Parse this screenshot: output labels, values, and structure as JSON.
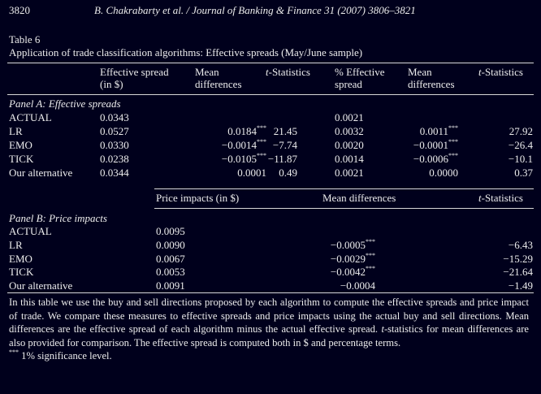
{
  "running_header": {
    "page_number": "3820",
    "citation": "B. Chakrabarty et al. / Journal of Banking & Finance 31 (2007) 3806–3821"
  },
  "table": {
    "label": "Table 6",
    "caption": "Application of trade classification algorithms: Effective spreads (May/June sample)",
    "header": {
      "col1_l1": "Effective spread",
      "col1_l2": "(in $)",
      "col2_l1": "Mean",
      "col2_l2": "differences",
      "col3": "-Statistics",
      "col4_l1": "% Effective",
      "col4_l2": "spread",
      "col5_l1": "Mean",
      "col5_l2": "differences",
      "col6": "-Statistics",
      "t": "t"
    },
    "panel_a": {
      "title": "Panel A: Effective spreads",
      "rows": [
        {
          "label": "ACTUAL",
          "es": "0.0343",
          "md": "",
          "md_sig": "",
          "ts": "",
          "pes": "0.0021",
          "pmd": "",
          "pmd_sig": "",
          "pts": ""
        },
        {
          "label": "LR",
          "es": "0.0527",
          "md": "0.0184",
          "md_sig": "***",
          "ts": "21.45",
          "pes": "0.0032",
          "pmd": "0.0011",
          "pmd_sig": "***",
          "pts": "27.92"
        },
        {
          "label": "EMO",
          "es": "0.0330",
          "md": "−0.0014",
          "md_sig": "***",
          "ts": "−7.74",
          "pes": "0.0020",
          "pmd": "−0.0001",
          "pmd_sig": "***",
          "pts": "−26.4"
        },
        {
          "label": "TICK",
          "es": "0.0238",
          "md": "−0.0105",
          "md_sig": "***",
          "ts": "−11.87",
          "pes": "0.0014",
          "pmd": "−0.0006",
          "pmd_sig": "***",
          "pts": "−10.1"
        },
        {
          "label": "Our alternative",
          "es": "0.0344",
          "md": "0.0001",
          "md_sig": "",
          "ts": "0.49",
          "pes": "0.0021",
          "pmd": "0.0000",
          "pmd_sig": "",
          "pts": "0.37"
        }
      ]
    },
    "panel_b": {
      "header_price": "Price impacts (in $)",
      "header_md": "Mean differences",
      "header_ts": "-Statistics",
      "title": "Panel B: Price impacts",
      "rows": [
        {
          "label": "ACTUAL",
          "pi": "0.0095",
          "md": "",
          "md_sig": "",
          "ts": ""
        },
        {
          "label": "LR",
          "pi": "0.0090",
          "md": "−0.0005",
          "md_sig": "***",
          "ts": "−6.43"
        },
        {
          "label": "EMO",
          "pi": "0.0067",
          "md": "−0.0029",
          "md_sig": "***",
          "ts": "−15.29"
        },
        {
          "label": "TICK",
          "pi": "0.0053",
          "md": "−0.0042",
          "md_sig": "***",
          "ts": "−21.64"
        },
        {
          "label": "Our alternative",
          "pi": "0.0091",
          "md": "−0.0004",
          "md_sig": "",
          "ts": "−1.49"
        }
      ]
    },
    "notes": {
      "p1": "In this table we use the buy and sell directions proposed by each algorithm to compute the effective spreads and price impact of trade. We compare these measures to effective spreads and price impacts using the actual buy and sell directions. Mean differences are the effective spread of each algorithm minus the actual effective spread.",
      "p2_t": "t",
      "p2": "-statistics for mean differences are also provided for comparison. The effective spread is computed both in $ and percentage terms.",
      "sig_mark": "***",
      "sig_text": " 1% significance level."
    }
  }
}
